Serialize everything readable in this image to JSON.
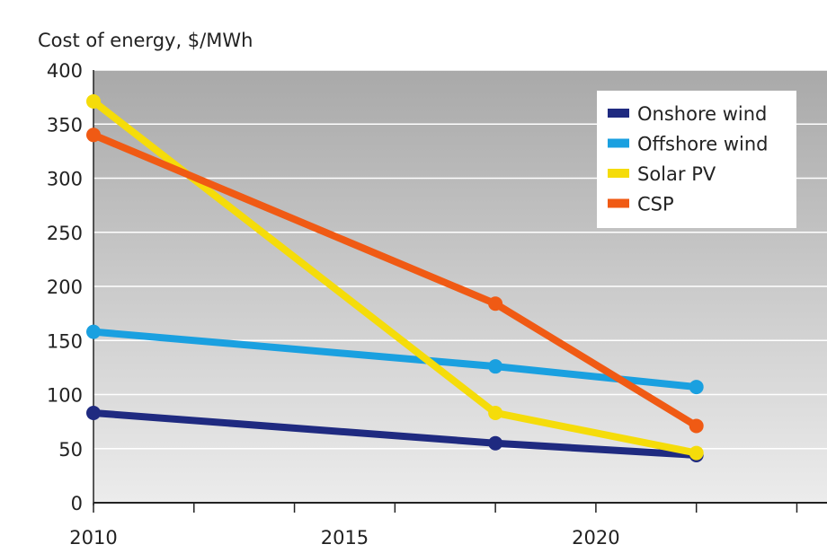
{
  "chart_data": {
    "type": "line",
    "title": "",
    "ylabel": "Cost of energy, $/MWh",
    "xlabel": "",
    "xlim": [
      2010,
      2024.6
    ],
    "ylim": [
      0,
      400
    ],
    "yticks": [
      0,
      50,
      100,
      150,
      200,
      250,
      300,
      350,
      400
    ],
    "xticks_labeled": [
      2010,
      2015,
      2020
    ],
    "xticks_minor": [
      2010,
      2012,
      2014,
      2016,
      2018,
      2020,
      2022,
      2024
    ],
    "grid": true,
    "legend_position": "top-right",
    "x": [
      2010,
      2018,
      2022
    ],
    "series": [
      {
        "name": "Onshore wind",
        "color": "#1f2a80",
        "values": [
          83,
          55,
          44
        ]
      },
      {
        "name": "Offshore wind",
        "color": "#1aa0e0",
        "values": [
          158,
          126,
          107
        ]
      },
      {
        "name": "Solar PV",
        "color": "#f5dc0a",
        "values": [
          371,
          83,
          46
        ]
      },
      {
        "name": "CSP",
        "color": "#f05a14",
        "values": [
          340,
          184,
          71
        ]
      }
    ]
  }
}
